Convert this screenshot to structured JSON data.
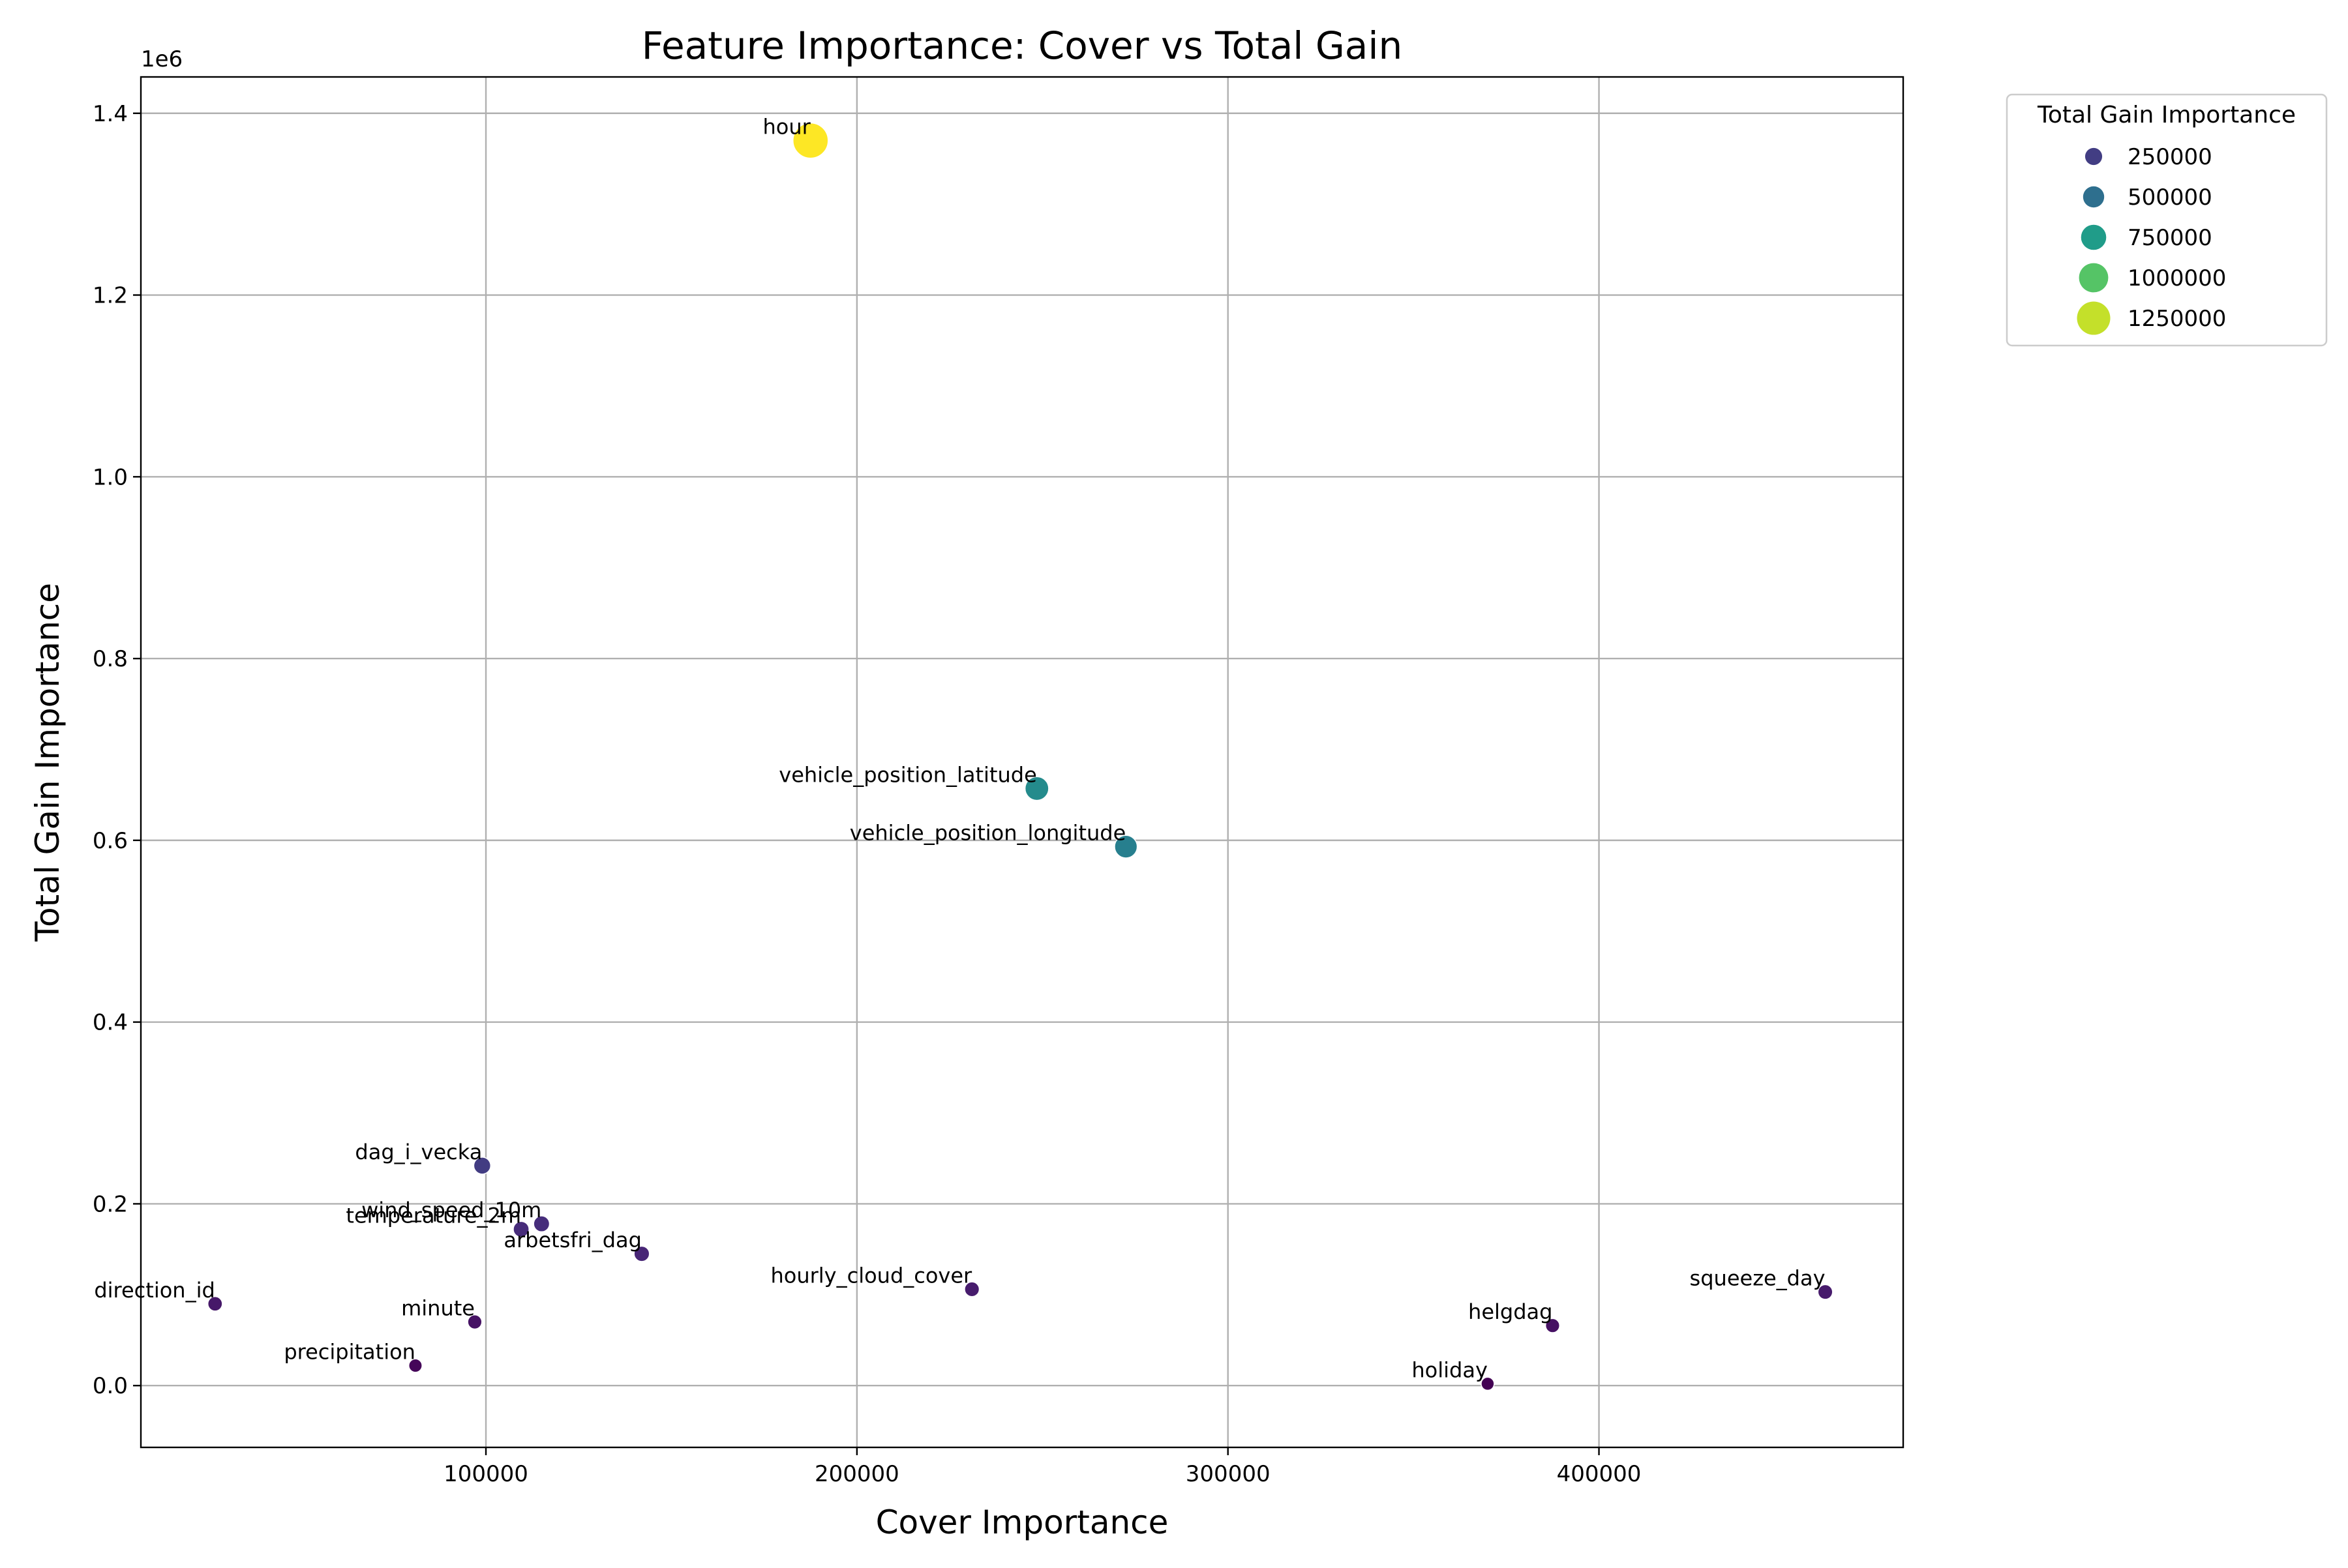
{
  "chart_data": {
    "type": "scatter",
    "title": "Feature Importance: Cover vs Total Gain",
    "xlabel": "Cover Importance",
    "ylabel": "Total Gain Importance",
    "y_offset_label": "1e6",
    "y_scale_factor": 1000000,
    "xlim": [
      7000,
      482000
    ],
    "ylim": [
      -0.068,
      1.44
    ],
    "x_ticks": [
      100000,
      200000,
      300000,
      400000
    ],
    "x_tick_labels": [
      "100000",
      "200000",
      "300000",
      "400000"
    ],
    "y_ticks": [
      0.0,
      0.2,
      0.4,
      0.6,
      0.8,
      1.0,
      1.2,
      1.4
    ],
    "y_tick_labels": [
      "0.0",
      "0.2",
      "0.4",
      "0.6",
      "0.8",
      "1.0",
      "1.2",
      "1.4"
    ],
    "grid": true,
    "colormap": "viridis",
    "color_range": [
      2000,
      1370000
    ],
    "points": [
      {
        "label": "hour",
        "x": 187500,
        "y": 1370000
      },
      {
        "label": "vehicle_position_latitude",
        "x": 248500,
        "y": 657000
      },
      {
        "label": "vehicle_position_longitude",
        "x": 272500,
        "y": 593000
      },
      {
        "label": "dag_i_vecka",
        "x": 99000,
        "y": 242000
      },
      {
        "label": "wind_speed_10m",
        "x": 115000,
        "y": 178000
      },
      {
        "label": "temperature_2m",
        "x": 109500,
        "y": 172000
      },
      {
        "label": "arbetsfri_dag",
        "x": 142000,
        "y": 145000
      },
      {
        "label": "hourly_cloud_cover",
        "x": 231000,
        "y": 106000
      },
      {
        "label": "squeeze_day",
        "x": 461000,
        "y": 103000
      },
      {
        "label": "direction_id",
        "x": 27000,
        "y": 90000
      },
      {
        "label": "minute",
        "x": 97000,
        "y": 70000
      },
      {
        "label": "helgdag",
        "x": 387500,
        "y": 66000
      },
      {
        "label": "precipitation",
        "x": 81000,
        "y": 22000
      },
      {
        "label": "holiday",
        "x": 370000,
        "y": 2000
      }
    ],
    "legend": {
      "title": "Total Gain Importance",
      "placement": "outside-top-right",
      "entries": [
        {
          "label": "250000",
          "value": 250000
        },
        {
          "label": "500000",
          "value": 500000
        },
        {
          "label": "750000",
          "value": 750000
        },
        {
          "label": "1000000",
          "value": 1000000
        },
        {
          "label": "1250000",
          "value": 1250000
        }
      ]
    }
  }
}
